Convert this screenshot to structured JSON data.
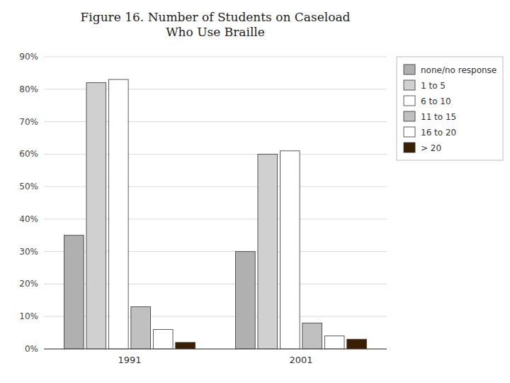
{
  "chart_data": {
    "type": "bar",
    "title": "Figure 16. Number of Students on Caseload\nWho Use Braille",
    "categories": [
      "1991",
      "2001"
    ],
    "series": [
      {
        "name": "none/no response",
        "color": "#b0b0b0",
        "values": [
          35,
          30
        ]
      },
      {
        "name": "1 to 5",
        "color": "#d0d0d0",
        "values": [
          82,
          60
        ]
      },
      {
        "name": "6 to 10",
        "color": "#ffffff",
        "values": [
          83,
          61
        ]
      },
      {
        "name": "11 to 15",
        "color": "#c0c0c0",
        "values": [
          13,
          8
        ]
      },
      {
        "name": "16 to 20",
        "color": "#ffffff",
        "values": [
          6,
          4
        ]
      },
      {
        "name": "> 20",
        "color": "#3a2000",
        "values": [
          2,
          3
        ]
      }
    ],
    "ylim": [
      0,
      90
    ],
    "yticks": [
      {
        "value": 0,
        "label": "0%"
      },
      {
        "value": 10,
        "label": "10%"
      },
      {
        "value": 20,
        "label": "20%"
      },
      {
        "value": 30,
        "label": "30%"
      },
      {
        "value": 40,
        "label": "40%"
      },
      {
        "value": 50,
        "label": "50%"
      },
      {
        "value": 60,
        "label": "60%"
      },
      {
        "value": 70,
        "label": "70%"
      },
      {
        "value": 80,
        "label": "80%"
      },
      {
        "value": 90,
        "label": "90%"
      }
    ],
    "grid": true,
    "legend": "upper-right"
  }
}
